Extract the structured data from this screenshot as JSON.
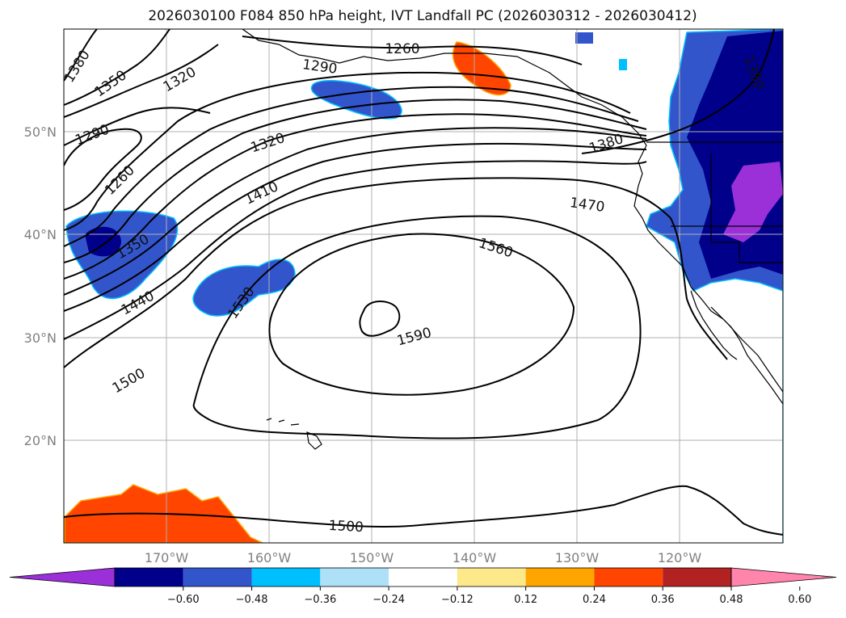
{
  "figure": {
    "title": "2026030100 F084 850 hPa height, IVT Landfall PC (2026030312 - 2026030412)",
    "lat_labels": [
      "50°N",
      "40°N",
      "30°N",
      "20°N"
    ],
    "lon_labels": [
      "170°W",
      "160°W",
      "150°W",
      "140°W",
      "130°W",
      "120°W"
    ],
    "contour_labels": [
      "1380",
      "1350",
      "1320",
      "1290",
      "1290",
      "1260",
      "1260",
      "1320",
      "1410",
      "1350",
      "1440",
      "1530",
      "1500",
      "1560",
      "1590",
      "1470",
      "1380",
      "1380",
      "1500"
    ],
    "colorbar": {
      "ticks": [
        "−0.60",
        "−0.48",
        "−0.36",
        "−0.24",
        "−0.12",
        "0.12",
        "0.24",
        "0.36",
        "0.48",
        "0.60"
      ],
      "colors": [
        "#9b30d9",
        "#00008b",
        "#3355cc",
        "#00bfff",
        "#aee0f8",
        "#ffffff",
        "#fde88a",
        "#ffa500",
        "#ff4500",
        "#b22222",
        "#ff85ad"
      ]
    }
  },
  "map_data": {
    "type": "contour",
    "variable": "850 hPa height",
    "shading": "IVT Landfall PC",
    "init": "2026030100",
    "forecast_hour": "F084",
    "valid_window": "2026030312 - 2026030412",
    "lat_range": [
      10,
      60
    ],
    "lon_range": [
      -180,
      -110
    ],
    "contour_levels": [
      1260,
      1290,
      1320,
      1350,
      1380,
      1410,
      1440,
      1470,
      1500,
      1530,
      1560,
      1590
    ],
    "colorbar_levels": [
      -0.6,
      -0.48,
      -0.36,
      -0.24,
      -0.12,
      0.12,
      0.24,
      0.36,
      0.48,
      0.6
    ]
  }
}
